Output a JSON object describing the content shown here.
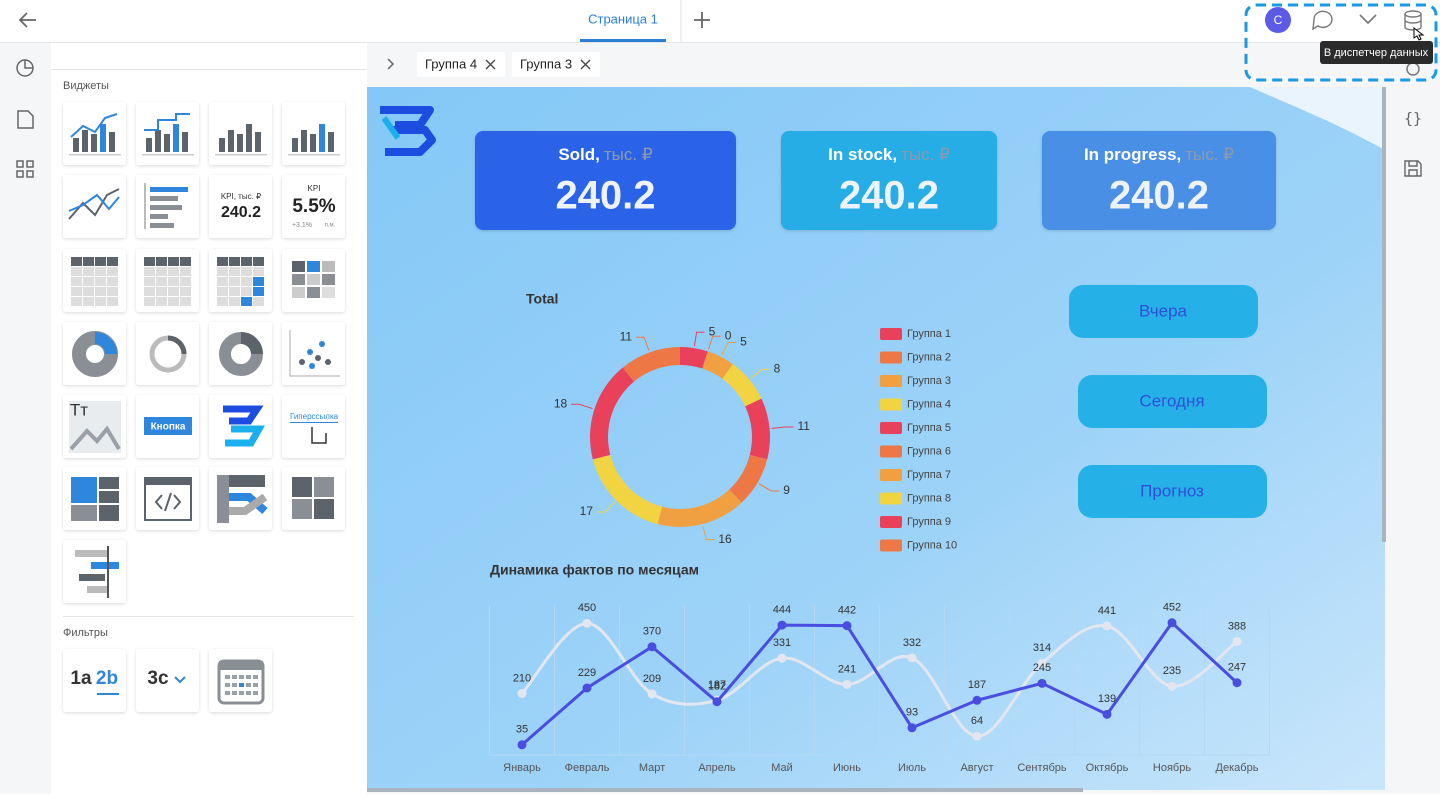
{
  "topbar": {
    "tab": "Страница 1",
    "avatar": "С",
    "tooltip": "В диспетчер данных"
  },
  "sidebar": {
    "widgets_title": "Виджеты",
    "filters_title": "Фильтры",
    "kpi_widget": {
      "title": "KPI, тыс. ₽",
      "value": "240.2"
    },
    "kpi2_widget": {
      "title": "KPI",
      "value": "5.5%",
      "delta": "+3.1%",
      "note": "п.м."
    },
    "image_widget": "Тт",
    "button_widget": "Кнопка",
    "link_widget": "Гиперссылка",
    "filter_widgets": [
      "1a",
      "2b",
      "3c"
    ]
  },
  "filters": [
    "Группа 4",
    "Группа 3"
  ],
  "kpis": [
    {
      "title": "Sold,",
      "unit": "тыс. ₽",
      "value": "240.2"
    },
    {
      "title": "In stock,",
      "unit": "тыс. ₽",
      "value": "240.2"
    },
    {
      "title": "In progress,",
      "unit": "тыс. ₽",
      "value": "240.2"
    }
  ],
  "buttons": [
    "Вчера",
    "Сегодня",
    "Прогноз"
  ],
  "chart_data": [
    {
      "type": "pie",
      "donut": true,
      "title": "Total",
      "categories": [
        "Группа 1",
        "Группа 2",
        "Группа 3",
        "Группа 4",
        "Группа 5",
        "Группа 6",
        "Группа 7",
        "Группа 8",
        "Группа 9",
        "Группа 10"
      ],
      "values": [
        5,
        0,
        5,
        8,
        11,
        9,
        16,
        17,
        18,
        11
      ],
      "colors": [
        "#e9405b",
        "#ee7845",
        "#f0a040",
        "#f2d443",
        "#e9405b",
        "#ee7845",
        "#f0a040",
        "#f2d443",
        "#e9405b",
        "#ee7845"
      ]
    },
    {
      "type": "line",
      "title": "Динамика фактов по месяцам",
      "categories": [
        "Январь",
        "Февраль",
        "Март",
        "Апрель",
        "Май",
        "Июнь",
        "Июль",
        "Август",
        "Сентябрь",
        "Октябрь",
        "Ноябрь",
        "Декабрь"
      ],
      "series": [
        {
          "color": "#4a4ee0",
          "smooth": false,
          "values": [
            35,
            229,
            370,
            182,
            444,
            442,
            93,
            187,
            245,
            139,
            452,
            247
          ]
        },
        {
          "color": "#e4e6ef",
          "smooth": true,
          "values": [
            210,
            450,
            209,
            187,
            331,
            241,
            332,
            64,
            314,
            441,
            235,
            388
          ]
        }
      ]
    }
  ]
}
